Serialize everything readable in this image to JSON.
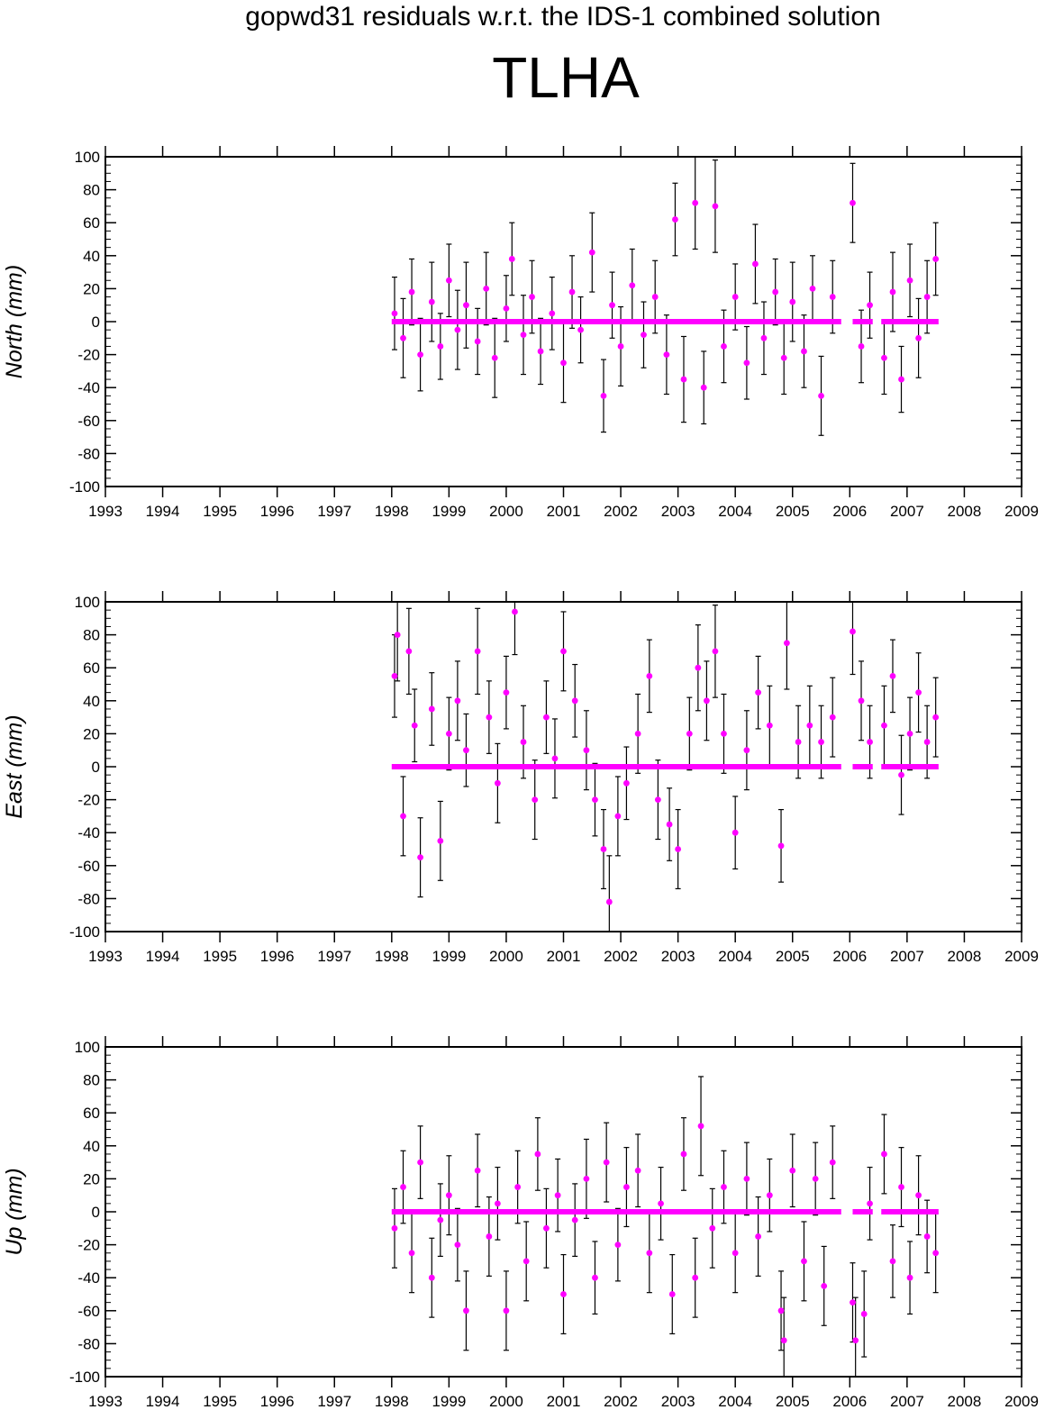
{
  "title": "gopwd31 residuals w.r.t. the IDS-1 combined solution",
  "station": "TLHA",
  "colors": {
    "point": "#ff00ff",
    "errorbar": "#000000",
    "frame": "#000000"
  },
  "chart_data": [
    {
      "type": "scatter",
      "ylabel": "North (mm)",
      "xlim": [
        1993,
        2009
      ],
      "ylim": [
        -100,
        100
      ],
      "xticks": [
        "1993",
        "1994",
        "1995",
        "1996",
        "1997",
        "1998",
        "1999",
        "2000",
        "2001",
        "2002",
        "2003",
        "2004",
        "2005",
        "2006",
        "2007",
        "2008",
        "2009"
      ],
      "yticks": [
        "100",
        "80",
        "60",
        "40",
        "20",
        "0",
        "-20",
        "-40",
        "-60",
        "-80",
        "-100"
      ],
      "zero_line_segments": [
        [
          1998.0,
          2005.85
        ],
        [
          2006.05,
          2006.4
        ],
        [
          2006.55,
          2007.55
        ]
      ],
      "series": [
        {
          "points": [
            [
              1998.05,
              5,
              22
            ],
            [
              1998.2,
              -10,
              24
            ],
            [
              1998.35,
              18,
              20
            ],
            [
              1998.5,
              -20,
              22
            ],
            [
              1998.7,
              12,
              24
            ],
            [
              1998.85,
              -15,
              20
            ],
            [
              1999.0,
              25,
              22
            ],
            [
              1999.15,
              -5,
              24
            ],
            [
              1999.3,
              10,
              26
            ],
            [
              1999.5,
              -12,
              20
            ],
            [
              1999.65,
              20,
              22
            ],
            [
              1999.8,
              -22,
              24
            ],
            [
              2000.0,
              8,
              20
            ],
            [
              2000.1,
              38,
              22
            ],
            [
              2000.3,
              -8,
              24
            ],
            [
              2000.45,
              15,
              22
            ],
            [
              2000.6,
              -18,
              20
            ],
            [
              2000.8,
              5,
              22
            ],
            [
              2001.0,
              -25,
              24
            ],
            [
              2001.15,
              18,
              22
            ],
            [
              2001.3,
              -5,
              20
            ],
            [
              2001.5,
              42,
              24
            ],
            [
              2001.7,
              -45,
              22
            ],
            [
              2001.85,
              10,
              20
            ],
            [
              2002.0,
              -15,
              24
            ],
            [
              2002.2,
              22,
              22
            ],
            [
              2002.4,
              -8,
              20
            ],
            [
              2002.6,
              15,
              22
            ],
            [
              2002.8,
              -20,
              24
            ],
            [
              2002.95,
              62,
              22
            ],
            [
              2003.1,
              -35,
              26
            ],
            [
              2003.3,
              72,
              28
            ],
            [
              2003.45,
              -40,
              22
            ],
            [
              2003.65,
              70,
              28
            ],
            [
              2003.8,
              -15,
              22
            ],
            [
              2004.0,
              15,
              20
            ],
            [
              2004.2,
              -25,
              22
            ],
            [
              2004.35,
              35,
              24
            ],
            [
              2004.5,
              -10,
              22
            ],
            [
              2004.7,
              18,
              20
            ],
            [
              2004.85,
              -22,
              22
            ],
            [
              2005.0,
              12,
              24
            ],
            [
              2005.2,
              -18,
              22
            ],
            [
              2005.35,
              20,
              20
            ],
            [
              2005.5,
              -45,
              24
            ],
            [
              2005.7,
              15,
              22
            ],
            [
              2006.05,
              72,
              24
            ],
            [
              2006.2,
              -15,
              22
            ],
            [
              2006.35,
              10,
              20
            ],
            [
              2006.6,
              -22,
              22
            ],
            [
              2006.75,
              18,
              24
            ],
            [
              2006.9,
              -35,
              20
            ],
            [
              2007.05,
              25,
              22
            ],
            [
              2007.2,
              -10,
              24
            ],
            [
              2007.35,
              15,
              22
            ],
            [
              2007.5,
              38,
              22
            ]
          ]
        }
      ]
    },
    {
      "type": "scatter",
      "ylabel": "East (mm)",
      "xlim": [
        1993,
        2009
      ],
      "ylim": [
        -100,
        100
      ],
      "xticks": [
        "1993",
        "1994",
        "1995",
        "1996",
        "1997",
        "1998",
        "1999",
        "2000",
        "2001",
        "2002",
        "2003",
        "2004",
        "2005",
        "2006",
        "2007",
        "2008",
        "2009"
      ],
      "yticks": [
        "100",
        "80",
        "60",
        "40",
        "20",
        "0",
        "-20",
        "-40",
        "-60",
        "-80",
        "-100"
      ],
      "zero_line_segments": [
        [
          1998.0,
          2005.85
        ],
        [
          2006.05,
          2006.4
        ],
        [
          2006.55,
          2007.55
        ]
      ],
      "series": [
        {
          "points": [
            [
              1998.05,
              55,
              25
            ],
            [
              1998.1,
              80,
              28
            ],
            [
              1998.2,
              -30,
              24
            ],
            [
              1998.3,
              70,
              26
            ],
            [
              1998.4,
              25,
              22
            ],
            [
              1998.5,
              -55,
              24
            ],
            [
              1998.7,
              35,
              22
            ],
            [
              1998.85,
              -45,
              24
            ],
            [
              1999.0,
              20,
              22
            ],
            [
              1999.15,
              40,
              24
            ],
            [
              1999.3,
              10,
              22
            ],
            [
              1999.5,
              70,
              26
            ],
            [
              1999.7,
              30,
              22
            ],
            [
              1999.85,
              -10,
              24
            ],
            [
              2000.0,
              45,
              22
            ],
            [
              2000.15,
              94,
              26
            ],
            [
              2000.3,
              15,
              22
            ],
            [
              2000.5,
              -20,
              24
            ],
            [
              2000.7,
              30,
              22
            ],
            [
              2000.85,
              5,
              24
            ],
            [
              2001.0,
              70,
              24
            ],
            [
              2001.2,
              40,
              22
            ],
            [
              2001.4,
              10,
              24
            ],
            [
              2001.55,
              -20,
              22
            ],
            [
              2001.7,
              -50,
              24
            ],
            [
              2001.8,
              -82,
              28
            ],
            [
              2001.95,
              -30,
              24
            ],
            [
              2002.1,
              -10,
              22
            ],
            [
              2002.3,
              20,
              24
            ],
            [
              2002.5,
              55,
              22
            ],
            [
              2002.65,
              -20,
              24
            ],
            [
              2002.85,
              -35,
              22
            ],
            [
              2003.0,
              -50,
              24
            ],
            [
              2003.2,
              20,
              22
            ],
            [
              2003.35,
              60,
              26
            ],
            [
              2003.5,
              40,
              24
            ],
            [
              2003.65,
              70,
              28
            ],
            [
              2003.8,
              20,
              24
            ],
            [
              2004.0,
              -40,
              22
            ],
            [
              2004.2,
              10,
              24
            ],
            [
              2004.4,
              45,
              22
            ],
            [
              2004.6,
              25,
              24
            ],
            [
              2004.8,
              -48,
              22
            ],
            [
              2004.9,
              75,
              28
            ],
            [
              2005.1,
              15,
              22
            ],
            [
              2005.3,
              25,
              24
            ],
            [
              2005.5,
              15,
              22
            ],
            [
              2005.7,
              30,
              24
            ],
            [
              2006.05,
              82,
              26
            ],
            [
              2006.2,
              40,
              24
            ],
            [
              2006.35,
              15,
              22
            ],
            [
              2006.6,
              25,
              24
            ],
            [
              2006.75,
              55,
              22
            ],
            [
              2006.9,
              -5,
              24
            ],
            [
              2007.05,
              20,
              22
            ],
            [
              2007.2,
              45,
              24
            ],
            [
              2007.35,
              15,
              22
            ],
            [
              2007.5,
              30,
              24
            ]
          ]
        }
      ]
    },
    {
      "type": "scatter",
      "ylabel": "Up (mm)",
      "xlim": [
        1993,
        2009
      ],
      "ylim": [
        -100,
        100
      ],
      "xticks": [
        "1993",
        "1994",
        "1995",
        "1996",
        "1997",
        "1998",
        "1999",
        "2000",
        "2001",
        "2002",
        "2003",
        "2004",
        "2005",
        "2006",
        "2007",
        "2008",
        "2009"
      ],
      "yticks": [
        "100",
        "80",
        "60",
        "40",
        "20",
        "0",
        "-20",
        "-40",
        "-60",
        "-80",
        "-100"
      ],
      "zero_line_segments": [
        [
          1998.0,
          2005.85
        ],
        [
          2006.05,
          2006.4
        ],
        [
          2006.55,
          2007.55
        ]
      ],
      "series": [
        {
          "points": [
            [
              1998.05,
              -10,
              24
            ],
            [
              1998.2,
              15,
              22
            ],
            [
              1998.35,
              -25,
              24
            ],
            [
              1998.5,
              30,
              22
            ],
            [
              1998.7,
              -40,
              24
            ],
            [
              1998.85,
              -5,
              22
            ],
            [
              1999.0,
              10,
              24
            ],
            [
              1999.15,
              -20,
              22
            ],
            [
              1999.3,
              -60,
              24
            ],
            [
              1999.5,
              25,
              22
            ],
            [
              1999.7,
              -15,
              24
            ],
            [
              1999.85,
              5,
              22
            ],
            [
              2000.0,
              -60,
              24
            ],
            [
              2000.2,
              15,
              22
            ],
            [
              2000.35,
              -30,
              24
            ],
            [
              2000.55,
              35,
              22
            ],
            [
              2000.7,
              -10,
              24
            ],
            [
              2000.9,
              10,
              22
            ],
            [
              2001.0,
              -50,
              24
            ],
            [
              2001.2,
              -5,
              22
            ],
            [
              2001.4,
              20,
              24
            ],
            [
              2001.55,
              -40,
              22
            ],
            [
              2001.75,
              30,
              24
            ],
            [
              2001.95,
              -20,
              22
            ],
            [
              2002.1,
              15,
              24
            ],
            [
              2002.3,
              25,
              22
            ],
            [
              2002.5,
              -25,
              24
            ],
            [
              2002.7,
              5,
              22
            ],
            [
              2002.9,
              -50,
              24
            ],
            [
              2003.1,
              35,
              22
            ],
            [
              2003.3,
              -40,
              24
            ],
            [
              2003.4,
              52,
              30
            ],
            [
              2003.6,
              -10,
              24
            ],
            [
              2003.8,
              15,
              22
            ],
            [
              2004.0,
              -25,
              24
            ],
            [
              2004.2,
              20,
              22
            ],
            [
              2004.4,
              -15,
              24
            ],
            [
              2004.6,
              10,
              22
            ],
            [
              2004.8,
              -60,
              24
            ],
            [
              2004.85,
              -78,
              26
            ],
            [
              2005.0,
              25,
              22
            ],
            [
              2005.2,
              -30,
              24
            ],
            [
              2005.4,
              20,
              22
            ],
            [
              2005.55,
              -45,
              24
            ],
            [
              2005.7,
              30,
              22
            ],
            [
              2006.05,
              -55,
              24
            ],
            [
              2006.1,
              -78,
              26
            ],
            [
              2006.25,
              -62,
              26
            ],
            [
              2006.35,
              5,
              22
            ],
            [
              2006.6,
              35,
              24
            ],
            [
              2006.75,
              -30,
              22
            ],
            [
              2006.9,
              15,
              24
            ],
            [
              2007.05,
              -40,
              22
            ],
            [
              2007.2,
              10,
              24
            ],
            [
              2007.35,
              -15,
              22
            ],
            [
              2007.5,
              -25,
              24
            ]
          ]
        }
      ]
    }
  ]
}
